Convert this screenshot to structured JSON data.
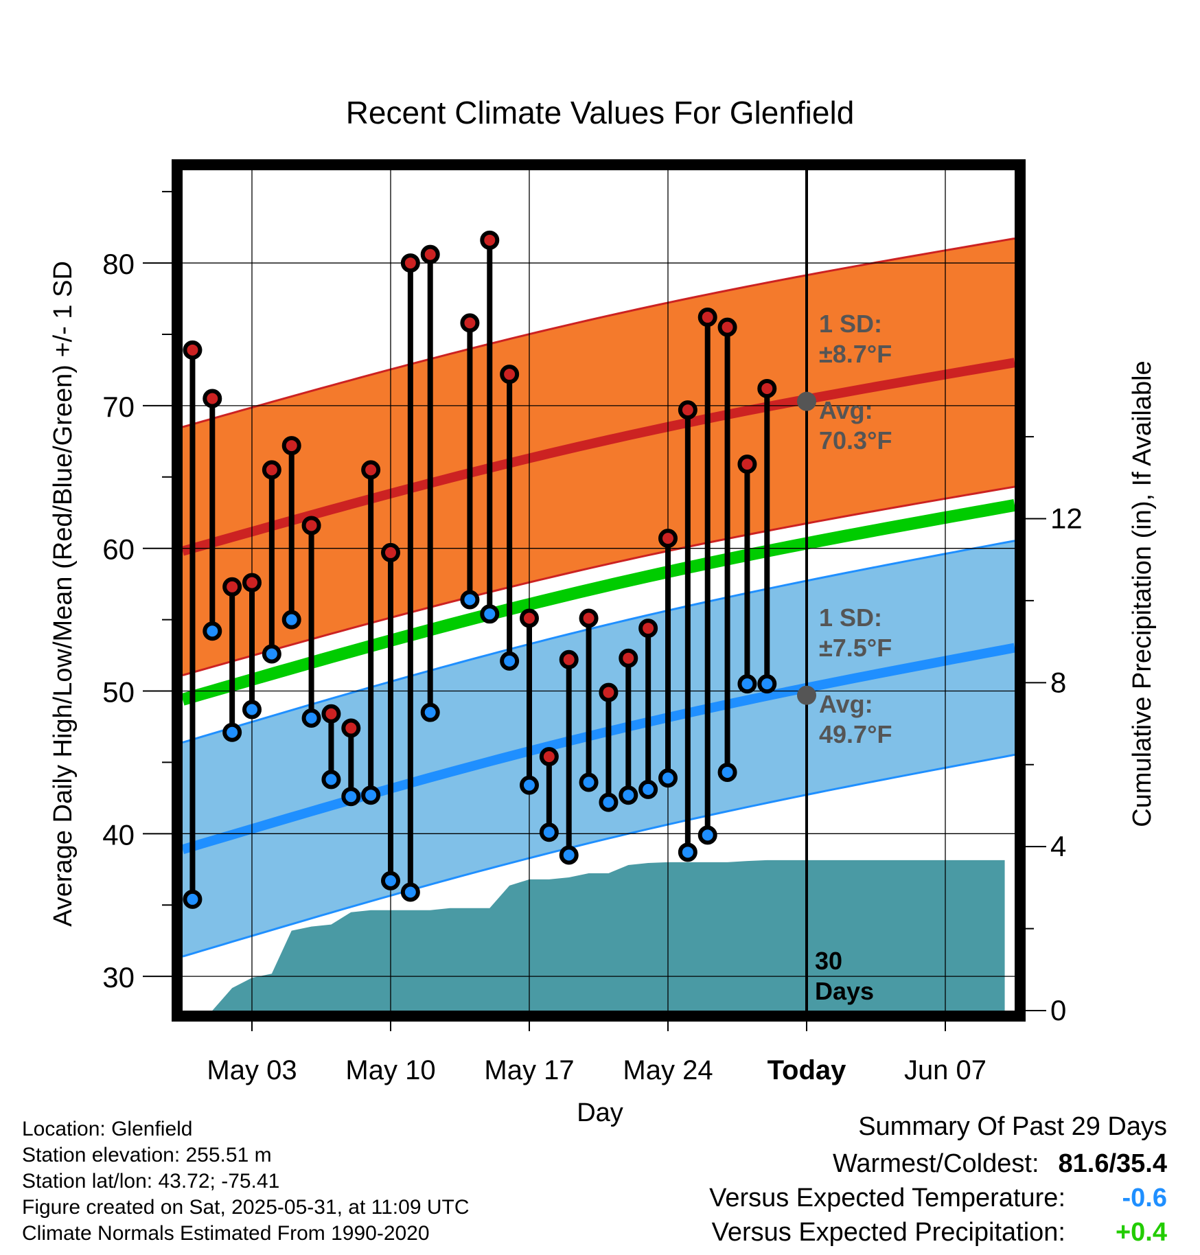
{
  "chart_data": {
    "type": "line",
    "title": "Recent Climate Values For Glenfield",
    "xlabel": "Day",
    "ylabel_left": "Average Daily High/Low/Mean (Red/Blue/Green) +/- 1 SD",
    "ylabel_right": "Cumulative Precipitation (in), If Available",
    "x_tick_labels": [
      "May 03",
      "May 10",
      "May 17",
      "May 24",
      "Today",
      "Jun 07"
    ],
    "y_left_ticks": [
      "30",
      "40",
      "50",
      "60",
      "70",
      "80"
    ],
    "y_right_ticks": [
      "0",
      "4",
      "8",
      "12"
    ],
    "ylim_left": [
      27.6,
      86.5
    ],
    "ylim_right": [
      0,
      20.5
    ],
    "today_label": "30 Days",
    "dates": [
      "2025-04-30",
      "2025-05-01",
      "2025-05-02",
      "2025-05-03",
      "2025-05-04",
      "2025-05-05",
      "2025-05-06",
      "2025-05-07",
      "2025-05-08",
      "2025-05-09",
      "2025-05-10",
      "2025-05-11",
      "2025-05-12",
      "2025-05-13",
      "2025-05-14",
      "2025-05-15",
      "2025-05-16",
      "2025-05-17",
      "2025-05-18",
      "2025-05-19",
      "2025-05-20",
      "2025-05-21",
      "2025-05-22",
      "2025-05-23",
      "2025-05-24",
      "2025-05-25",
      "2025-05-26",
      "2025-05-27",
      "2025-05-28",
      "2025-05-29",
      "2025-05-30"
    ],
    "daily_high": [
      73.9,
      70.5,
      57.3,
      57.6,
      65.5,
      67.2,
      61.6,
      48.4,
      47.4,
      65.5,
      59.7,
      80.0,
      80.6,
      null,
      75.8,
      81.6,
      72.2,
      55.1,
      45.4,
      52.2,
      55.1,
      49.9,
      52.3,
      54.4,
      60.7,
      69.7,
      76.2,
      75.5,
      65.9,
      71.2,
      null
    ],
    "daily_low": [
      35.4,
      54.2,
      47.1,
      48.7,
      52.6,
      55.0,
      48.1,
      43.8,
      42.6,
      42.7,
      36.7,
      35.9,
      48.5,
      null,
      56.4,
      55.4,
      52.1,
      43.4,
      40.1,
      38.5,
      43.6,
      42.2,
      42.7,
      43.1,
      43.9,
      38.7,
      39.9,
      44.3,
      50.5,
      50.5,
      null
    ],
    "normals_dates": [
      "2025-04-30",
      "2025-06-10"
    ],
    "normal_high": [
      60.0,
      72.9
    ],
    "normal_low": [
      39.1,
      52.9
    ],
    "normal_mean": [
      49.6,
      62.9
    ],
    "high_sd": 8.7,
    "low_sd": 7.5,
    "today_normal_high": 70.3,
    "today_normal_low": 49.7,
    "precip_dates": [
      "2025-05-01",
      "2025-05-02",
      "2025-05-03",
      "2025-05-04",
      "2025-05-05",
      "2025-05-06",
      "2025-05-07",
      "2025-05-08",
      "2025-05-09",
      "2025-05-10",
      "2025-05-11",
      "2025-05-12",
      "2025-05-13",
      "2025-05-14",
      "2025-05-15",
      "2025-05-16",
      "2025-05-17",
      "2025-05-18",
      "2025-05-19",
      "2025-05-20",
      "2025-05-21",
      "2025-05-22",
      "2025-05-23",
      "2025-05-24",
      "2025-05-25",
      "2025-05-26",
      "2025-05-27",
      "2025-05-28",
      "2025-05-29",
      "2025-05-30",
      "2025-06-10"
    ],
    "cumulative_precip": [
      0,
      0.55,
      0.8,
      0.9,
      1.95,
      2.05,
      2.1,
      2.4,
      2.45,
      2.45,
      2.45,
      2.45,
      2.5,
      2.5,
      2.5,
      3.05,
      3.2,
      3.2,
      3.25,
      3.35,
      3.35,
      3.55,
      3.6,
      3.62,
      3.62,
      3.62,
      3.62,
      3.65,
      3.67,
      3.67,
      3.67
    ],
    "colors": {
      "high": "#cc2222",
      "low": "#1f8fff",
      "mean": "#00cc00",
      "high_band": "#f47a2c",
      "low_band": "#80c0e8",
      "precip": "#4a9aa4",
      "label_gray": "#555555"
    },
    "annotations": {
      "high_sd_title": "1 SD:",
      "high_sd_value": "±8.7°F",
      "high_avg_title": "Avg:",
      "high_avg_value": "70.3°F",
      "low_sd_title": "1 SD:",
      "low_sd_value": "±7.5°F",
      "low_avg_title": "Avg:",
      "low_avg_value": "49.7°F"
    },
    "grid": true
  },
  "info": {
    "location": "Location: Glenfield",
    "elevation": "Station elevation: 255.51 m",
    "latlon": "Station lat/lon: 43.72; -75.41",
    "created": "Figure created on Sat, 2025-05-31, at 11:09 UTC",
    "normals": "Climate Normals Estimated From 1990-2020"
  },
  "summary": {
    "title": "Summary Of Past 29 Days",
    "warmest_label": "Warmest/Coldest:",
    "warmest_value": "81.6/35.4",
    "temp_label": "Versus Expected Temperature:",
    "temp_value": "-0.6",
    "temp_color": "#1f8fff",
    "precip_label": "Versus Expected Precipitation:",
    "precip_value": "+0.4",
    "precip_color": "#22cc00"
  }
}
